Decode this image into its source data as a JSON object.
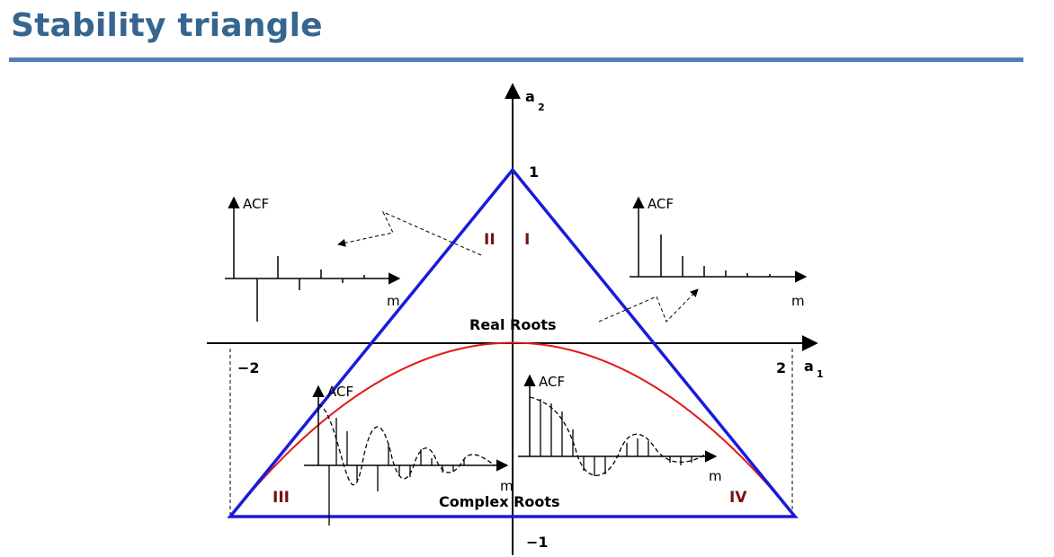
{
  "slide": {
    "title": "Stability triangle"
  },
  "axes": {
    "y_label": "a",
    "y_subscript": "2",
    "x_label": "a",
    "x_subscript": "1",
    "tick_y_top": "1",
    "tick_y_bottom": "−1",
    "tick_x_left": "−2",
    "tick_x_right": "2"
  },
  "regions": {
    "I": "I",
    "II": "II",
    "III": "III",
    "IV": "IV"
  },
  "boundary_labels": {
    "real": "Real Roots",
    "complex": "Complex Roots"
  },
  "insets": {
    "upper_left": {
      "ylabel": "ACF",
      "xlabel": "m"
    },
    "upper_right": {
      "ylabel": "ACF",
      "xlabel": "m"
    },
    "lower_left": {
      "ylabel": "ACF",
      "xlabel": "m"
    },
    "lower_right": {
      "ylabel": "ACF",
      "xlabel": "m"
    }
  },
  "colors": {
    "triangle": "#1a1adb",
    "parabola": "#e31a1a",
    "title": "#36668f",
    "region_labels": "#7a1010"
  }
}
